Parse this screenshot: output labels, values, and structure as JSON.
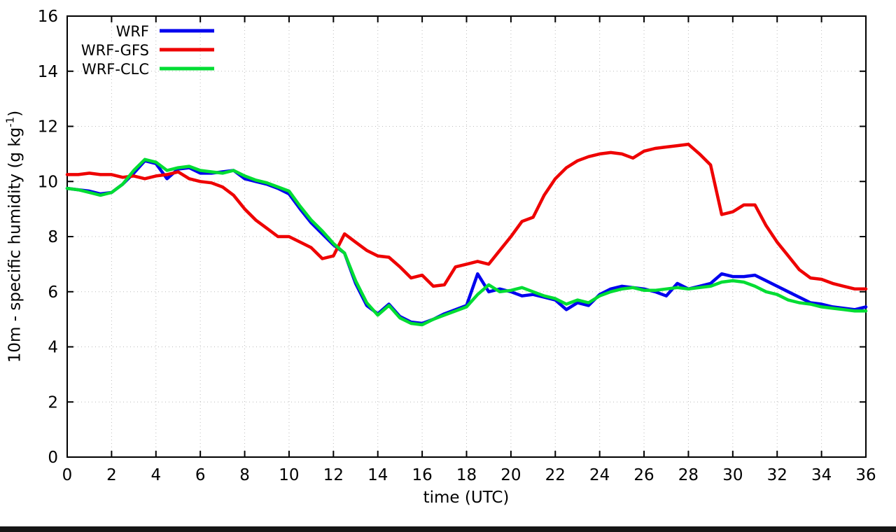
{
  "page": {
    "background": "#ffffff",
    "bottom_bar_color": "#161616",
    "grid_color": "#bbbbbb",
    "border_color": "#000000"
  },
  "chart_data": {
    "type": "line",
    "title": "",
    "xlabel": "time (UTC)",
    "ylabel": "10m - specific humidity (g kg-1)",
    "ylabel_parts": {
      "main": "10m - specific humidity (g kg",
      "sup": "-1",
      "close": ")"
    },
    "xlim": [
      0,
      36
    ],
    "ylim": [
      0,
      16
    ],
    "xticks": [
      0,
      2,
      4,
      6,
      8,
      10,
      12,
      14,
      16,
      18,
      20,
      22,
      24,
      26,
      28,
      30,
      32,
      34,
      36
    ],
    "yticks": [
      0,
      2,
      4,
      6,
      8,
      10,
      12,
      14,
      16
    ],
    "grid": true,
    "legend_position": "top-left",
    "x": [
      0,
      0.5,
      1,
      1.5,
      2,
      2.5,
      3,
      3.5,
      4,
      4.5,
      5,
      5.5,
      6,
      6.5,
      7,
      7.5,
      8,
      8.5,
      9,
      9.5,
      10,
      10.5,
      11,
      11.5,
      12,
      12.5,
      13,
      13.5,
      14,
      14.5,
      15,
      15.5,
      16,
      16.5,
      17,
      17.5,
      18,
      18.5,
      19,
      19.5,
      20,
      20.5,
      21,
      21.5,
      22,
      22.5,
      23,
      23.5,
      24,
      24.5,
      25,
      25.5,
      26,
      26.5,
      27,
      27.5,
      28,
      28.5,
      29,
      29.5,
      30,
      30.5,
      31,
      31.5,
      32,
      32.5,
      33,
      33.5,
      34,
      34.5,
      35,
      35.5,
      36
    ],
    "series": [
      {
        "name": "WRF",
        "color": "#0000ee",
        "values": [
          9.75,
          9.7,
          9.65,
          9.55,
          9.6,
          9.9,
          10.3,
          10.75,
          10.65,
          10.1,
          10.45,
          10.5,
          10.3,
          10.3,
          10.35,
          10.4,
          10.1,
          10.0,
          9.9,
          9.75,
          9.55,
          9.0,
          8.5,
          8.1,
          7.7,
          7.4,
          6.3,
          5.5,
          5.2,
          5.55,
          5.1,
          4.9,
          4.85,
          5.0,
          5.2,
          5.35,
          5.5,
          6.65,
          6.0,
          6.1,
          6.0,
          5.85,
          5.9,
          5.8,
          5.7,
          5.35,
          5.6,
          5.5,
          5.9,
          6.1,
          6.2,
          6.15,
          6.1,
          6.0,
          5.85,
          6.3,
          6.1,
          6.2,
          6.3,
          6.65,
          6.55,
          6.55,
          6.6,
          6.4,
          6.2,
          6.0,
          5.8,
          5.6,
          5.55,
          5.45,
          5.4,
          5.35,
          5.45
        ]
      },
      {
        "name": "WRF-GFS",
        "color": "#ee0000",
        "values": [
          10.25,
          10.25,
          10.3,
          10.25,
          10.25,
          10.15,
          10.2,
          10.1,
          10.2,
          10.25,
          10.35,
          10.1,
          10.0,
          9.95,
          9.8,
          9.5,
          9.0,
          8.6,
          8.3,
          8.0,
          8.0,
          7.8,
          7.6,
          7.2,
          7.3,
          8.1,
          7.8,
          7.5,
          7.3,
          7.25,
          6.9,
          6.5,
          6.6,
          6.2,
          6.25,
          6.9,
          7.0,
          7.1,
          7.0,
          7.5,
          8.0,
          8.55,
          8.7,
          9.5,
          10.1,
          10.5,
          10.75,
          10.9,
          11.0,
          11.05,
          11.0,
          10.85,
          11.1,
          11.2,
          11.25,
          11.3,
          11.35,
          11.0,
          10.6,
          8.8,
          8.9,
          9.15,
          9.15,
          8.4,
          7.8,
          7.3,
          6.8,
          6.5,
          6.45,
          6.3,
          6.2,
          6.1,
          6.1
        ]
      },
      {
        "name": "WRF-CLC",
        "color": "#00dd33",
        "values": [
          9.75,
          9.7,
          9.6,
          9.5,
          9.6,
          9.9,
          10.4,
          10.8,
          10.7,
          10.4,
          10.5,
          10.55,
          10.4,
          10.35,
          10.3,
          10.4,
          10.2,
          10.05,
          9.95,
          9.8,
          9.65,
          9.1,
          8.6,
          8.2,
          7.75,
          7.4,
          6.4,
          5.6,
          5.15,
          5.5,
          5.05,
          4.85,
          4.8,
          5.0,
          5.15,
          5.3,
          5.45,
          5.9,
          6.25,
          6.0,
          6.05,
          6.15,
          6.0,
          5.85,
          5.75,
          5.55,
          5.7,
          5.6,
          5.85,
          6.0,
          6.1,
          6.15,
          6.05,
          6.05,
          6.1,
          6.15,
          6.1,
          6.15,
          6.2,
          6.35,
          6.4,
          6.35,
          6.2,
          6.0,
          5.9,
          5.7,
          5.6,
          5.55,
          5.45,
          5.4,
          5.35,
          5.3,
          5.3
        ]
      }
    ],
    "draw_order": [
      "WRF",
      "WRF-GFS",
      "WRF-CLC"
    ]
  }
}
